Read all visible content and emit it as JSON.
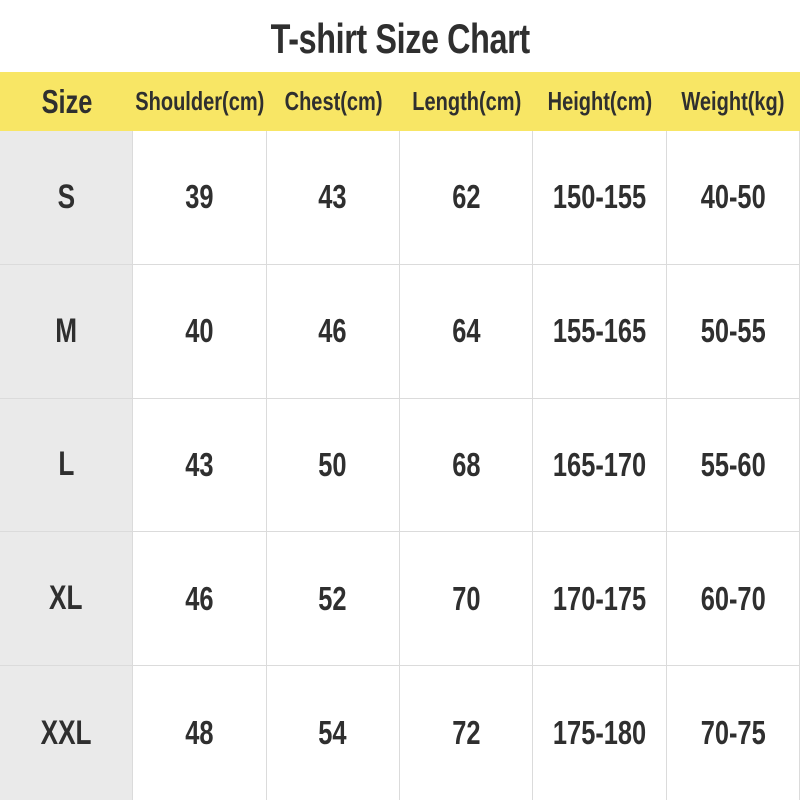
{
  "title": "T-shirt Size Chart",
  "colors": {
    "header_bg": "#F8E665",
    "size_col_bg": "#EAEAEA",
    "border": "#DBDBDB",
    "text": "#2F2F2F"
  },
  "table": {
    "headers": [
      "Size",
      "Shoulder(cm)",
      "Chest(cm)",
      "Length(cm)",
      "Height(cm)",
      "Weight(kg)"
    ],
    "rows": [
      {
        "cells": [
          "S",
          "39",
          "43",
          "62",
          "150-155",
          "40-50"
        ]
      },
      {
        "cells": [
          "M",
          "40",
          "46",
          "64",
          "155-165",
          "50-55"
        ]
      },
      {
        "cells": [
          "L",
          "43",
          "50",
          "68",
          "165-170",
          "55-60"
        ]
      },
      {
        "cells": [
          "XL",
          "46",
          "52",
          "70",
          "170-175",
          "60-70"
        ]
      },
      {
        "cells": [
          "XXL",
          "48",
          "54",
          "72",
          "175-180",
          "70-75"
        ]
      }
    ]
  },
  "chart_data": {
    "type": "table",
    "title": "T-shirt Size Chart",
    "columns": [
      "Size",
      "Shoulder(cm)",
      "Chest(cm)",
      "Length(cm)",
      "Height(cm)",
      "Weight(kg)"
    ],
    "rows": [
      [
        "S",
        39,
        43,
        62,
        "150-155",
        "40-50"
      ],
      [
        "M",
        40,
        46,
        64,
        "155-165",
        "50-55"
      ],
      [
        "L",
        43,
        50,
        68,
        "165-170",
        "55-60"
      ],
      [
        "XL",
        46,
        52,
        70,
        "170-175",
        "60-70"
      ],
      [
        "XXL",
        48,
        54,
        72,
        "175-180",
        "70-75"
      ]
    ]
  }
}
